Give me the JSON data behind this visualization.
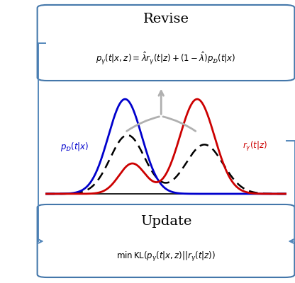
{
  "revise_title": "Revise",
  "revise_formula": "$p_{\\gamma}(t|x, z) = \\hat{\\lambda}r_{\\gamma}(t|z) + (1 - \\hat{\\lambda})p_{\\mathcal{D}}(t|x)$",
  "update_title": "Update",
  "update_formula": "$\\min\\, \\mathrm{KL}(p_{\\gamma}(t|x, z)||r_{\\gamma}(t|z))$",
  "label_pD": "$p_{\\mathcal{D}}(t|x)$",
  "label_r": "$r_{\\gamma}(t|z)$",
  "blue_color": "#0000cc",
  "red_color": "#cc0000",
  "gray_color": "#b0b0b0",
  "box_edge_color": "#4477aa",
  "box_face_color": "#ffffff",
  "arrow_color": "#5588bb",
  "fig_width": 4.16,
  "fig_height": 4.0,
  "dpi": 100
}
